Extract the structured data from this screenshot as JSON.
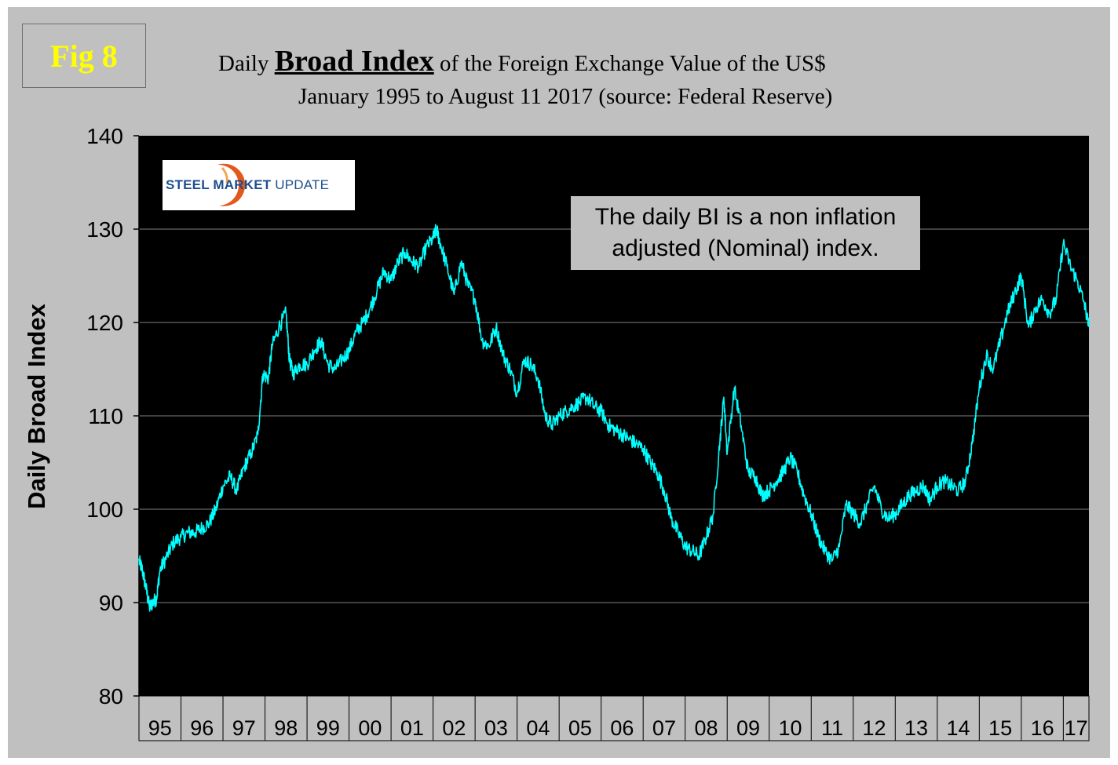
{
  "figure_label": "Fig 8",
  "title": {
    "prefix": "Daily ",
    "emphasis": "Broad Index",
    "suffix": " of the Foreign Exchange Value of the US$",
    "subtitle": "January 1995 to August 11 2017 (source: Federal Reserve)"
  },
  "logo": {
    "word1": "STEEL ",
    "word2": "MARKET",
    "word3": " UPDATE",
    "accent_color": "#e2591b",
    "text_color": "#1f4e8c"
  },
  "annotation": {
    "line1": "The daily BI is a non inflation",
    "line2": "adjusted (Nominal) index."
  },
  "colors": {
    "plot_background": "#000000",
    "panel_background": "#c0c0c0",
    "series_line": "#00ffff",
    "gridline": "#808080",
    "figure_label": "#ffff00"
  },
  "chart_data": {
    "type": "line",
    "title": "Daily Broad Index of the Foreign Exchange Value of the US$",
    "subtitle": "January 1995 to August 11 2017 (source: Federal Reserve)",
    "xlabel": "",
    "ylabel": "Daily Broad Index",
    "ylim": [
      80,
      140
    ],
    "yticks": [
      80,
      90,
      100,
      110,
      120,
      130,
      140
    ],
    "xlim": [
      1995.0,
      2017.61
    ],
    "x_categories": [
      "95",
      "96",
      "97",
      "98",
      "99",
      "00",
      "01",
      "02",
      "03",
      "04",
      "05",
      "06",
      "07",
      "08",
      "09",
      "10",
      "11",
      "12",
      "13",
      "14",
      "15",
      "16",
      "17"
    ],
    "grid": true,
    "legend": "none",
    "series": [
      {
        "color": "#00ffff",
        "x": [
          1995.0,
          1995.08,
          1995.17,
          1995.25,
          1995.33,
          1995.42,
          1995.5,
          1995.67,
          1995.83,
          1996.0,
          1996.17,
          1996.33,
          1996.5,
          1996.67,
          1996.83,
          1997.0,
          1997.17,
          1997.33,
          1997.5,
          1997.67,
          1997.83,
          1997.95,
          1998.08,
          1998.17,
          1998.33,
          1998.5,
          1998.58,
          1998.67,
          1998.83,
          1999.0,
          1999.17,
          1999.33,
          1999.5,
          1999.67,
          1999.83,
          2000.0,
          2000.17,
          2000.33,
          2000.5,
          2000.67,
          2000.83,
          2001.0,
          2001.17,
          2001.33,
          2001.5,
          2001.67,
          2001.83,
          2002.0,
          2002.08,
          2002.17,
          2002.33,
          2002.5,
          2002.67,
          2002.83,
          2003.0,
          2003.17,
          2003.33,
          2003.5,
          2003.67,
          2003.83,
          2004.0,
          2004.17,
          2004.33,
          2004.5,
          2004.67,
          2004.83,
          2005.0,
          2005.17,
          2005.33,
          2005.5,
          2005.67,
          2005.83,
          2006.0,
          2006.17,
          2006.33,
          2006.5,
          2006.67,
          2006.83,
          2007.0,
          2007.17,
          2007.33,
          2007.5,
          2007.67,
          2007.83,
          2008.0,
          2008.17,
          2008.33,
          2008.5,
          2008.67,
          2008.83,
          2008.92,
          2009.0,
          2009.17,
          2009.33,
          2009.5,
          2009.67,
          2009.83,
          2010.0,
          2010.17,
          2010.33,
          2010.5,
          2010.67,
          2010.83,
          2011.0,
          2011.17,
          2011.33,
          2011.5,
          2011.67,
          2011.83,
          2012.0,
          2012.17,
          2012.33,
          2012.5,
          2012.67,
          2012.83,
          2013.0,
          2013.17,
          2013.33,
          2013.5,
          2013.67,
          2013.83,
          2014.0,
          2014.17,
          2014.33,
          2014.5,
          2014.67,
          2014.83,
          2015.0,
          2015.17,
          2015.33,
          2015.5,
          2015.67,
          2015.83,
          2016.0,
          2016.17,
          2016.33,
          2016.5,
          2016.67,
          2016.83,
          2017.0,
          2017.17,
          2017.33,
          2017.5,
          2017.61
        ],
        "values": [
          94.5,
          93.5,
          91.5,
          89.5,
          90.0,
          90.5,
          93.5,
          95.0,
          96.5,
          97.0,
          97.5,
          97.5,
          98.0,
          98.5,
          100.0,
          102.5,
          103.5,
          102.0,
          104.5,
          106.0,
          108.0,
          114.5,
          114.0,
          117.5,
          119.5,
          121.0,
          116.0,
          114.5,
          115.5,
          115.5,
          117.0,
          118.0,
          115.5,
          115.0,
          116.0,
          117.0,
          119.0,
          120.0,
          121.5,
          123.5,
          125.5,
          124.5,
          126.5,
          127.5,
          126.5,
          126.0,
          128.0,
          129.0,
          130.0,
          128.5,
          126.0,
          123.0,
          126.5,
          124.0,
          122.5,
          118.0,
          117.5,
          119.5,
          116.5,
          115.0,
          112.5,
          116.0,
          115.5,
          114.0,
          110.0,
          109.0,
          110.0,
          110.5,
          111.0,
          111.5,
          112.0,
          111.0,
          110.5,
          109.0,
          108.5,
          108.0,
          107.5,
          107.0,
          106.5,
          105.0,
          104.0,
          102.0,
          99.0,
          97.5,
          96.0,
          95.5,
          95.0,
          97.0,
          99.5,
          107.5,
          112.0,
          106.0,
          113.0,
          109.0,
          104.0,
          103.5,
          101.5,
          102.0,
          103.0,
          104.0,
          105.5,
          104.0,
          101.5,
          99.5,
          97.0,
          95.5,
          94.5,
          96.0,
          100.5,
          99.5,
          98.5,
          100.5,
          102.5,
          100.0,
          99.0,
          99.5,
          100.5,
          101.5,
          102.0,
          102.5,
          101.0,
          102.5,
          103.0,
          102.5,
          102.0,
          103.0,
          107.0,
          113.0,
          116.5,
          115.0,
          118.0,
          121.0,
          123.0,
          125.0,
          119.5,
          121.5,
          122.5,
          121.0,
          122.5,
          128.5,
          126.0,
          124.5,
          122.0,
          119.5
        ]
      }
    ]
  }
}
